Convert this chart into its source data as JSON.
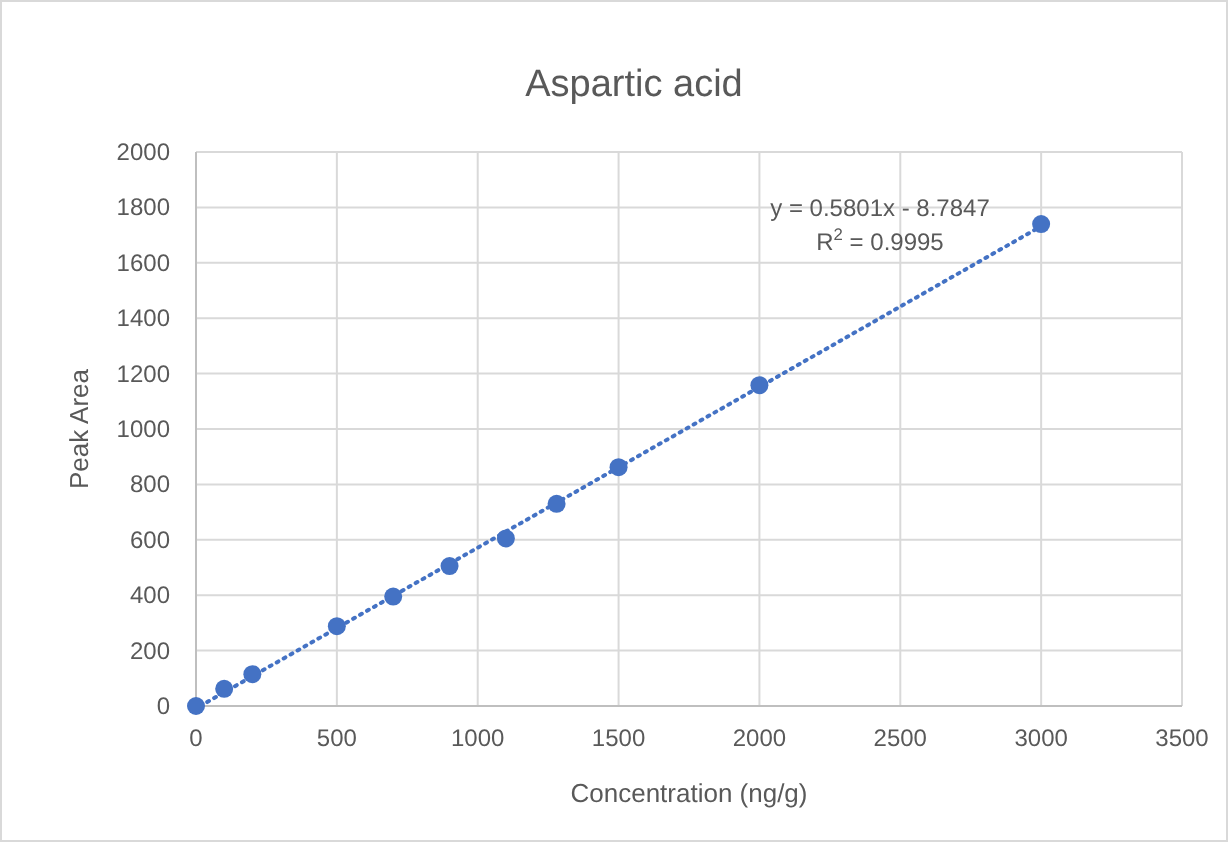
{
  "chart_data": {
    "type": "scatter",
    "title": "Aspartic acid",
    "xlabel": "Concentration (ng/g)",
    "ylabel": "Peak Area",
    "xlim": [
      0,
      3500
    ],
    "xticks": [
      0,
      500,
      1000,
      1500,
      2000,
      2500,
      3000,
      3500
    ],
    "ylim": [
      0,
      2000
    ],
    "yticks": [
      0,
      200,
      400,
      600,
      800,
      1000,
      1200,
      1400,
      1600,
      1800,
      2000
    ],
    "grid": true,
    "marker": "circle",
    "series": [
      {
        "color": "#4472c4",
        "x": [
          0,
          100,
          200,
          500,
          700,
          900,
          1100,
          1280,
          1500,
          2000,
          3000
        ],
        "values": [
          0,
          62,
          115,
          288,
          395,
          505,
          605,
          730,
          862,
          1158,
          1740
        ]
      },
      {
        "type": "line",
        "color": "#4472c4",
        "line_style": "dotted",
        "marker": "none",
        "x": [
          15.1,
          3000
        ],
        "values": [
          0,
          1732
        ]
      }
    ],
    "annotations": [
      "y = 0.5801x - 8.7847",
      "R$^{2}$ = 0.9995"
    ]
  }
}
